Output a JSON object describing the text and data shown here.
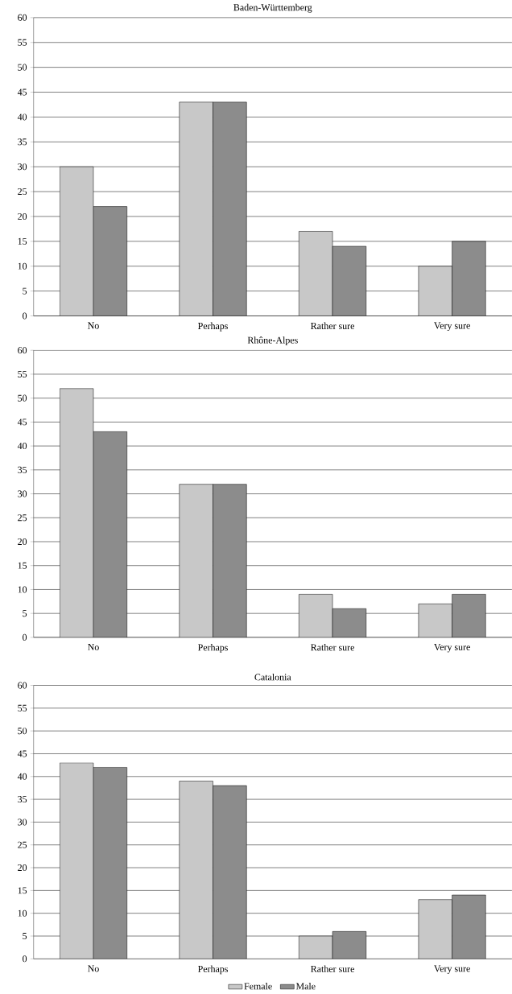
{
  "chart_data": [
    {
      "type": "bar",
      "title": "Baden-Württemberg",
      "categories": [
        "No",
        "Perhaps",
        "Rather sure",
        "Very sure"
      ],
      "series": [
        {
          "color": "#c8c8c8",
          "values": [
            30,
            43,
            17,
            10
          ]
        },
        {
          "color": "#8c8c8c",
          "values": [
            22,
            43,
            14,
            15
          ]
        }
      ],
      "ylim": [
        0,
        60
      ],
      "yticks": [
        0,
        5,
        10,
        15,
        20,
        25,
        30,
        35,
        40,
        45,
        50,
        55,
        60
      ],
      "grid": "y"
    },
    {
      "type": "bar",
      "title": "Rhône-Alpes",
      "categories": [
        "No",
        "Perhaps",
        "Rather sure",
        "Very sure"
      ],
      "series": [
        {
          "color": "#c8c8c8",
          "values": [
            52,
            32,
            9,
            7
          ]
        },
        {
          "color": "#8c8c8c",
          "values": [
            43,
            32,
            6,
            9
          ]
        }
      ],
      "ylim": [
        0,
        60
      ],
      "yticks": [
        0,
        5,
        10,
        15,
        20,
        25,
        30,
        35,
        40,
        45,
        50,
        55,
        60
      ],
      "grid": "y"
    },
    {
      "type": "bar",
      "title": "Catalonia",
      "categories": [
        "No",
        "Perhaps",
        "Rather sure",
        "Very sure"
      ],
      "series": [
        {
          "name": "Female",
          "color": "#c8c8c8",
          "values": [
            43,
            39,
            5,
            13
          ]
        },
        {
          "name": "Male",
          "color": "#8c8c8c",
          "values": [
            42,
            38,
            6,
            14
          ]
        }
      ],
      "ylim": [
        0,
        60
      ],
      "yticks": [
        0,
        5,
        10,
        15,
        20,
        25,
        30,
        35,
        40,
        45,
        50,
        55,
        60
      ],
      "grid": "y",
      "legend": "bottom"
    }
  ]
}
